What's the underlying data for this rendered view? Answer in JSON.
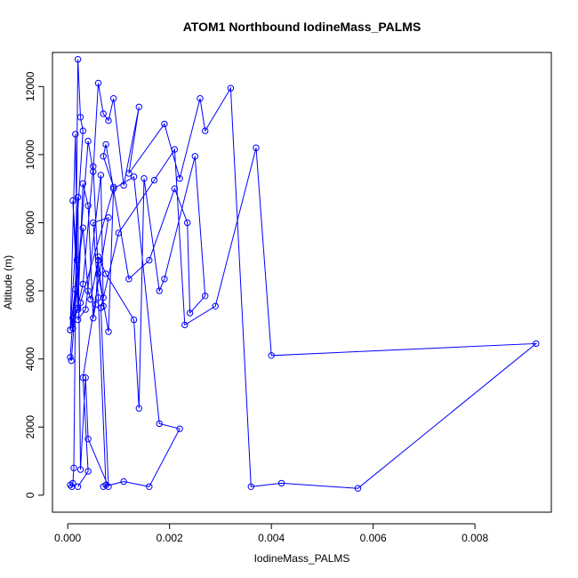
{
  "chart_data": {
    "type": "line",
    "title": "ATOM1 Northbound IodineMass_PALMS",
    "xlabel": "IodineMass_PALMS",
    "ylabel": "Altitude (m)",
    "xlim": [
      -0.0003,
      0.0095
    ],
    "ylim": [
      -500,
      13000
    ],
    "x_ticks": [
      0,
      0.002,
      0.004,
      0.006,
      0.008
    ],
    "x_tick_labels": [
      "0.000",
      "0.002",
      "0.004",
      "0.006",
      "0.008"
    ],
    "y_ticks": [
      0,
      2000,
      4000,
      6000,
      8000,
      10000,
      12000
    ],
    "y_tick_labels": [
      "0",
      "2000",
      "4000",
      "6000",
      "8000",
      "10000",
      "12000"
    ],
    "grid": false,
    "legend": "none",
    "markers": "open-circle",
    "color": "#0000ff",
    "series": [
      {
        "x": [
          5e-05,
          8e-05,
          0.0001,
          0.00012,
          0.0002,
          0.00025,
          0.0003,
          5e-05,
          0.00015,
          0.0002,
          0.0001,
          0.00018,
          5e-05,
          7e-05,
          0.0004,
          0.0005,
          0.0006,
          0.0007,
          0.0008,
          0.0009,
          0.0011,
          0.0014,
          0.0012,
          0.0019,
          0.0022,
          0.0026,
          0.0027,
          0.0032,
          0.0036,
          0.0042,
          0.0057,
          0.0092,
          0.004,
          0.0037,
          0.0029,
          0.0023,
          0.0021,
          0.0017,
          0.001,
          0.0007,
          0.00065,
          0.0008,
          0.0004,
          0.00035,
          0.00025,
          0.0002,
          0.00015,
          0.0001,
          0.0003,
          0.0005,
          0.0006,
          0.0008,
          0.0009,
          0.0007,
          0.00075,
          0.0012,
          0.0016,
          0.0021,
          0.00235,
          0.0024,
          0.0027,
          0.0025,
          0.0019,
          0.0018,
          0.0015,
          0.0014,
          0.0013,
          0.00075,
          0.0006,
          0.00055,
          0.0005,
          0.0004,
          0.0003,
          0.0002,
          0.0001,
          5e-05,
          0.0003,
          0.0004,
          0.00045,
          0.0006,
          0.0007,
          0.00065,
          0.00035,
          0.0002,
          0.00025,
          0.0009,
          0.0013,
          0.0018,
          0.0022,
          0.0016,
          0.0011,
          0.0007,
          0.00075,
          0.0006,
          0.0005,
          0.0008,
          0.0003,
          0.0004,
          0.0002
        ],
        "y": [
          300,
          250,
          350,
          800,
          12800,
          11100,
          10700,
          4850,
          10600,
          5500,
          8650,
          6900,
          4050,
          3950,
          10400,
          9500,
          12100,
          11200,
          11000,
          11650,
          9100,
          11400,
          9450,
          10900,
          9300,
          11650,
          10700,
          11950,
          250,
          350,
          200,
          4450,
          4100,
          10200,
          5550,
          5000,
          10150,
          9250,
          7700,
          5800,
          5500,
          250,
          1650,
          3450,
          750,
          8750,
          6050,
          4900,
          6200,
          9650,
          6500,
          4800,
          9050,
          9950,
          10300,
          6350,
          6900,
          9000,
          8000,
          5350,
          5850,
          9950,
          6350,
          6000,
          9300,
          2550,
          5150,
          6500,
          7000,
          5600,
          5200,
          8500,
          9150,
          5450,
          5200,
          4850,
          7850,
          6000,
          5750,
          6900,
          5550,
          9400,
          5450,
          5150,
          5650,
          9000,
          9350,
          2100,
          1950,
          250,
          400,
          250,
          300,
          5800,
          8000,
          8150,
          3450,
          700,
          250
        ]
      }
    ]
  }
}
